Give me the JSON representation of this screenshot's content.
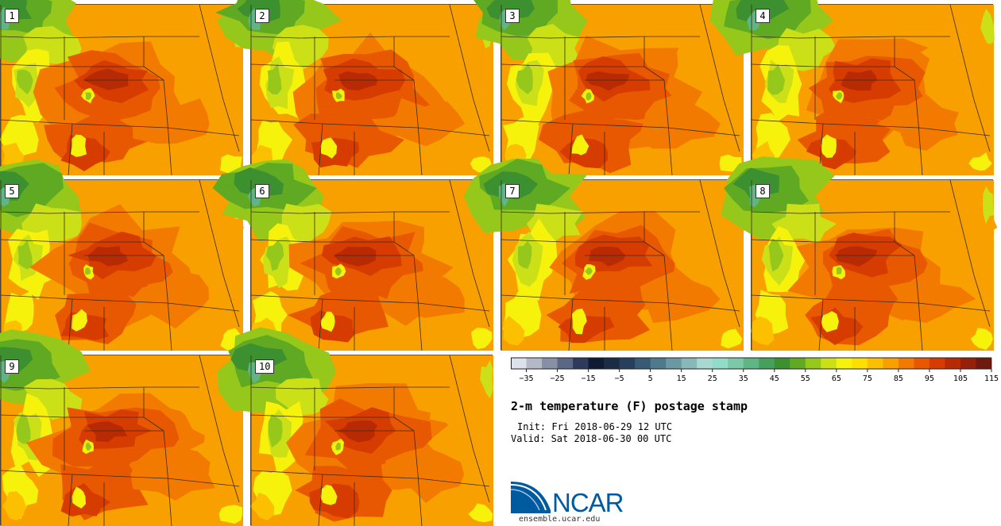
{
  "product": {
    "title": "2-m temperature (F) postage stamp",
    "init": "Init: Fri 2018-06-29 12 UTC",
    "valid": "Valid: Sat 2018-06-30 00 UTC"
  },
  "members": [
    "1",
    "2",
    "3",
    "4",
    "5",
    "6",
    "7",
    "8",
    "9",
    "10"
  ],
  "colorbar": {
    "ticks": [
      "-35",
      "-25",
      "-15",
      "-5",
      "5",
      "15",
      "25",
      "35",
      "45",
      "55",
      "65",
      "75",
      "85",
      "95",
      "105",
      "115"
    ],
    "colors": [
      "#dde2ea",
      "#b4b9c8",
      "#8890a6",
      "#5c6786",
      "#2d3a5c",
      "#0f1a33",
      "#1b2c47",
      "#263f5c",
      "#385a74",
      "#4f7a8c",
      "#6a98a3",
      "#88b8b8",
      "#a8d8d0",
      "#90dcc8",
      "#7cc8a8",
      "#5fb684",
      "#46a05c",
      "#3d9030",
      "#5faa22",
      "#96c81c",
      "#cce018",
      "#f6f20c",
      "#fde000",
      "#fcc000",
      "#f8a000",
      "#f27a00",
      "#e85800",
      "#d63c00",
      "#b82a04",
      "#96200a",
      "#701a0e"
    ],
    "brand_blue": "#005aa0"
  },
  "footer": {
    "logo_text": "NCAR",
    "url": "ensemble.ucar.edu"
  }
}
